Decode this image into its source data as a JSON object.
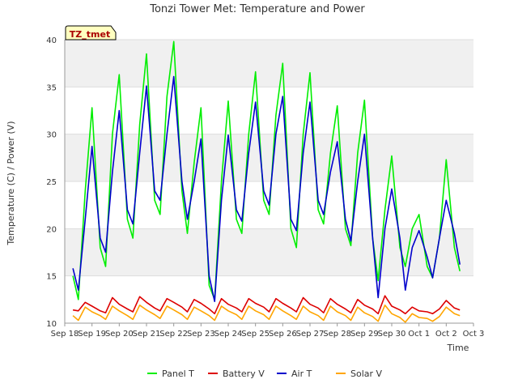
{
  "chart_data": {
    "type": "line",
    "title": "Tonzi Tower Met: Temperature and Power",
    "xlabel": "Time",
    "ylabel": "Temperature (C) / Power (V)",
    "tag_label": "TZ_tmet",
    "ylim": [
      10,
      40
    ],
    "xlim": [
      0,
      15
    ],
    "yticks": [
      10,
      15,
      20,
      25,
      30,
      35,
      40
    ],
    "xticks": [
      {
        "pos": 0,
        "label": "Sep 18"
      },
      {
        "pos": 1,
        "label": "Sep 19"
      },
      {
        "pos": 2,
        "label": "Sep 20"
      },
      {
        "pos": 3,
        "label": "Sep 21"
      },
      {
        "pos": 4,
        "label": "Sep 22"
      },
      {
        "pos": 5,
        "label": "Sep 23"
      },
      {
        "pos": 6,
        "label": "Sep 24"
      },
      {
        "pos": 7,
        "label": "Sep 25"
      },
      {
        "pos": 8,
        "label": "Sep 26"
      },
      {
        "pos": 9,
        "label": "Sep 27"
      },
      {
        "pos": 10,
        "label": "Sep 28"
      },
      {
        "pos": 11,
        "label": "Sep 29"
      },
      {
        "pos": 12,
        "label": "Sep 30"
      },
      {
        "pos": 13,
        "label": "Oct 1"
      },
      {
        "pos": 14,
        "label": "Oct 2"
      },
      {
        "pos": 15,
        "label": "Oct 3"
      }
    ],
    "grid": "horizontal bands",
    "legend_position": "bottom",
    "series": [
      {
        "name": "Panel T",
        "color": "#00ee00",
        "x": [
          0.3,
          0.5,
          0.75,
          1.0,
          1.3,
          1.5,
          1.75,
          2.0,
          2.3,
          2.5,
          2.75,
          3.0,
          3.3,
          3.5,
          3.75,
          4.0,
          4.3,
          4.5,
          4.75,
          5.0,
          5.3,
          5.5,
          5.75,
          6.0,
          6.3,
          6.5,
          6.75,
          7.0,
          7.3,
          7.5,
          7.75,
          8.0,
          8.3,
          8.5,
          8.75,
          9.0,
          9.3,
          9.5,
          9.75,
          10.0,
          10.3,
          10.5,
          10.75,
          11.0,
          11.3,
          11.5,
          11.75,
          12.0,
          12.3,
          12.5,
          12.75,
          13.0,
          13.3,
          13.5,
          13.75,
          14.0,
          14.3,
          14.5
        ],
        "y": [
          15,
          12.5,
          24,
          32.8,
          18,
          16,
          30,
          36.3,
          21,
          19,
          31,
          38.5,
          23,
          21.5,
          34,
          39.8,
          24,
          19.5,
          27,
          32.8,
          14,
          12.5,
          25,
          33.5,
          21,
          19.5,
          30,
          36.6,
          23,
          21.5,
          32,
          37.5,
          20,
          18,
          30,
          36.5,
          22,
          20.5,
          28,
          33,
          20,
          18.2,
          28,
          33.6,
          19,
          14.5,
          22,
          27.7,
          18,
          16,
          20,
          21.5,
          16,
          14.8,
          19,
          27.3,
          18,
          15.5
        ]
      },
      {
        "name": "Battery V",
        "color": "#dd0000",
        "x": [
          0.3,
          0.5,
          0.75,
          1.0,
          1.3,
          1.5,
          1.75,
          2.0,
          2.3,
          2.5,
          2.75,
          3.0,
          3.3,
          3.5,
          3.75,
          4.0,
          4.3,
          4.5,
          4.75,
          5.0,
          5.3,
          5.5,
          5.75,
          6.0,
          6.3,
          6.5,
          6.75,
          7.0,
          7.3,
          7.5,
          7.75,
          8.0,
          8.3,
          8.5,
          8.75,
          9.0,
          9.3,
          9.5,
          9.75,
          10.0,
          10.3,
          10.5,
          10.75,
          11.0,
          11.3,
          11.5,
          11.75,
          12.0,
          12.3,
          12.5,
          12.75,
          13.0,
          13.3,
          13.5,
          13.75,
          14.0,
          14.3,
          14.5
        ],
        "y": [
          11.4,
          11.3,
          12.2,
          11.8,
          11.3,
          11.1,
          12.7,
          12.0,
          11.5,
          11.2,
          12.8,
          12.2,
          11.6,
          11.3,
          12.6,
          12.2,
          11.7,
          11.2,
          12.5,
          12.1,
          11.5,
          11.0,
          12.6,
          12.0,
          11.6,
          11.2,
          12.6,
          12.1,
          11.7,
          11.2,
          12.6,
          12.1,
          11.6,
          11.2,
          12.7,
          12.0,
          11.6,
          11.1,
          12.6,
          12.0,
          11.5,
          11.1,
          12.5,
          11.9,
          11.5,
          11.0,
          12.9,
          11.8,
          11.4,
          11.0,
          11.7,
          11.3,
          11.2,
          11.0,
          11.5,
          12.4,
          11.6,
          11.4
        ]
      },
      {
        "name": "Air T",
        "color": "#0000cc",
        "x": [
          0.3,
          0.5,
          0.75,
          1.0,
          1.3,
          1.5,
          1.75,
          2.0,
          2.3,
          2.5,
          2.75,
          3.0,
          3.3,
          3.5,
          3.75,
          4.0,
          4.3,
          4.5,
          4.75,
          5.0,
          5.3,
          5.5,
          5.75,
          6.0,
          6.3,
          6.5,
          6.75,
          7.0,
          7.3,
          7.5,
          7.75,
          8.0,
          8.3,
          8.5,
          8.75,
          9.0,
          9.3,
          9.5,
          9.75,
          10.0,
          10.3,
          10.5,
          10.75,
          11.0,
          11.3,
          11.5,
          11.75,
          12.0,
          12.3,
          12.5,
          12.75,
          13.0,
          13.3,
          13.5,
          13.75,
          14.0,
          14.3,
          14.5
        ],
        "y": [
          15.8,
          13.5,
          21,
          28.7,
          19,
          17.5,
          26,
          32.5,
          22,
          20.5,
          28,
          35.1,
          24,
          23,
          30,
          36.1,
          25,
          21,
          25,
          29.5,
          15,
          12.3,
          23,
          29.9,
          22,
          20.8,
          28,
          33.4,
          24,
          22.5,
          30,
          34,
          21,
          19.8,
          28,
          33.4,
          23,
          21.5,
          26,
          29.2,
          21,
          18.7,
          25,
          30,
          19,
          12.7,
          20,
          24.2,
          19,
          13.5,
          18,
          19.8,
          17,
          14.8,
          19,
          23,
          19.5,
          16.2
        ]
      },
      {
        "name": "Solar V",
        "color": "#ffa500",
        "x": [
          0.3,
          0.5,
          0.75,
          1.0,
          1.3,
          1.5,
          1.75,
          2.0,
          2.3,
          2.5,
          2.75,
          3.0,
          3.3,
          3.5,
          3.75,
          4.0,
          4.3,
          4.5,
          4.75,
          5.0,
          5.3,
          5.5,
          5.75,
          6.0,
          6.3,
          6.5,
          6.75,
          7.0,
          7.3,
          7.5,
          7.75,
          8.0,
          8.3,
          8.5,
          8.75,
          9.0,
          9.3,
          9.5,
          9.75,
          10.0,
          10.3,
          10.5,
          10.75,
          11.0,
          11.3,
          11.5,
          11.75,
          12.0,
          12.3,
          12.5,
          12.75,
          13.0,
          13.3,
          13.5,
          13.75,
          14.0,
          14.3,
          14.5
        ],
        "y": [
          10.8,
          10.3,
          11.7,
          11.2,
          10.8,
          10.4,
          11.8,
          11.3,
          10.8,
          10.4,
          11.9,
          11.4,
          10.9,
          10.5,
          11.8,
          11.4,
          10.9,
          10.4,
          11.7,
          11.3,
          10.8,
          10.3,
          11.8,
          11.3,
          10.9,
          10.4,
          11.8,
          11.3,
          10.9,
          10.4,
          11.8,
          11.3,
          10.8,
          10.4,
          11.8,
          11.2,
          10.8,
          10.3,
          11.8,
          11.2,
          10.8,
          10.3,
          11.7,
          11.1,
          10.7,
          10.2,
          11.9,
          11.0,
          10.6,
          10.1,
          11.0,
          10.6,
          10.5,
          10.2,
          10.7,
          11.7,
          11.0,
          10.8
        ]
      }
    ]
  }
}
